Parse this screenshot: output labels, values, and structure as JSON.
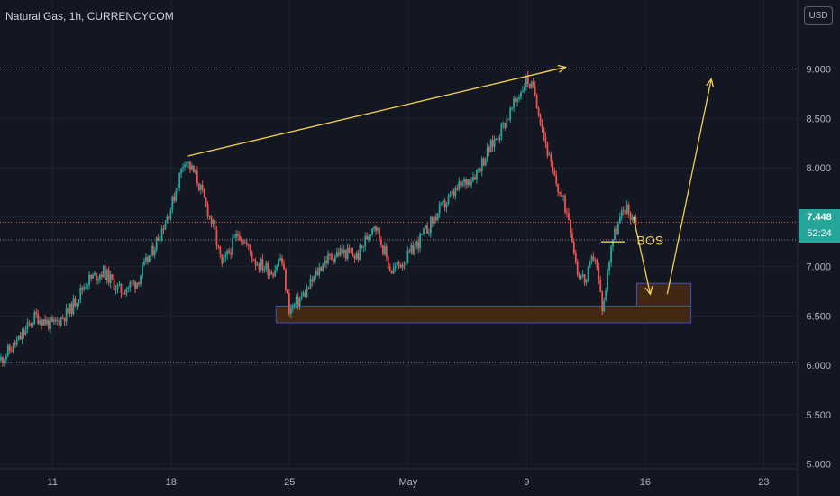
{
  "header": {
    "symbol_title": "Natural Gas, 1h, CURRENCYCOM",
    "currency": "USD"
  },
  "price_tag": {
    "price": "7.448",
    "countdown": "52:24"
  },
  "annotation": {
    "label": "BOS"
  },
  "colors": {
    "background": "#131722",
    "up": "#26a69a",
    "down": "#ef5350",
    "drawing": "#f0d050",
    "zone_border": "#3d4fbf",
    "zone_fill": "#4a2c10"
  },
  "chart_data": {
    "type": "candlestick",
    "title": "Natural Gas, 1h, CURRENCYCOM",
    "xlabel": "",
    "ylabel": "",
    "ylim": [
      4.95,
      9.7
    ],
    "y_ticks": [
      "9.000",
      "8.500",
      "8.000",
      "7.500",
      "7.000",
      "6.500",
      "6.000",
      "5.500",
      "5.000"
    ],
    "x_ticks": [
      "11",
      "18",
      "25",
      "May",
      "9",
      "16",
      "23"
    ],
    "x_tick_positions": [
      11,
      18,
      25,
      32,
      39,
      46,
      53
    ],
    "x_range": [
      7.9,
      55.0
    ],
    "price_path": [
      [
        7.9,
        6.05
      ],
      [
        9.0,
        6.25
      ],
      [
        10.0,
        6.5
      ],
      [
        11.0,
        6.4
      ],
      [
        12.0,
        6.55
      ],
      [
        13.0,
        6.85
      ],
      [
        14.0,
        6.95
      ],
      [
        15.0,
        6.75
      ],
      [
        16.0,
        6.85
      ],
      [
        17.0,
        7.2
      ],
      [
        18.0,
        7.6
      ],
      [
        18.8,
        8.1
      ],
      [
        19.5,
        7.9
      ],
      [
        20.5,
        7.4
      ],
      [
        21.0,
        7.0
      ],
      [
        22.0,
        7.35
      ],
      [
        23.0,
        7.05
      ],
      [
        24.0,
        6.95
      ],
      [
        24.5,
        7.1
      ],
      [
        25.0,
        6.55
      ],
      [
        26.0,
        6.75
      ],
      [
        27.0,
        7.05
      ],
      [
        28.0,
        7.15
      ],
      [
        29.0,
        7.1
      ],
      [
        30.0,
        7.45
      ],
      [
        31.0,
        6.95
      ],
      [
        32.0,
        7.1
      ],
      [
        33.0,
        7.35
      ],
      [
        34.0,
        7.6
      ],
      [
        35.0,
        7.8
      ],
      [
        36.0,
        7.95
      ],
      [
        37.0,
        8.25
      ],
      [
        38.0,
        8.55
      ],
      [
        39.0,
        8.9
      ],
      [
        39.5,
        8.75
      ],
      [
        40.5,
        7.95
      ],
      [
        41.5,
        7.5
      ],
      [
        42.0,
        6.95
      ],
      [
        42.5,
        6.85
      ],
      [
        43.0,
        7.15
      ],
      [
        43.5,
        6.55
      ],
      [
        44.0,
        7.25
      ],
      [
        44.8,
        7.6
      ],
      [
        45.5,
        7.45
      ]
    ],
    "horizontal_lines": [
      {
        "price": 9.0,
        "color": "#8a8e99",
        "style": "dotted"
      },
      {
        "price": 7.448,
        "color": "#ef5350",
        "style": "dotted"
      },
      {
        "price": 7.27,
        "color": "#8a8e99",
        "style": "dotted"
      },
      {
        "price": 6.03,
        "color": "#8a8e99",
        "style": "dotted"
      }
    ],
    "zones": [
      {
        "x0": 24.2,
        "x1": 48.7,
        "y0": 6.43,
        "y1": 6.6
      },
      {
        "x0": 45.5,
        "x1": 48.7,
        "y0": 6.6,
        "y1": 6.83
      }
    ],
    "drawings": [
      {
        "kind": "arrow",
        "from": [
          19.0,
          8.12
        ],
        "to": [
          41.3,
          9.02
        ]
      },
      {
        "kind": "line",
        "from": [
          43.4,
          7.25
        ],
        "to": [
          44.8,
          7.25
        ]
      },
      {
        "kind": "arrow",
        "from": [
          45.3,
          7.5
        ],
        "to": [
          46.3,
          6.72
        ]
      },
      {
        "kind": "arrow",
        "from": [
          47.3,
          6.72
        ],
        "to": [
          49.9,
          8.9
        ]
      }
    ],
    "bos_label_position": [
      45.5,
      7.22
    ]
  }
}
